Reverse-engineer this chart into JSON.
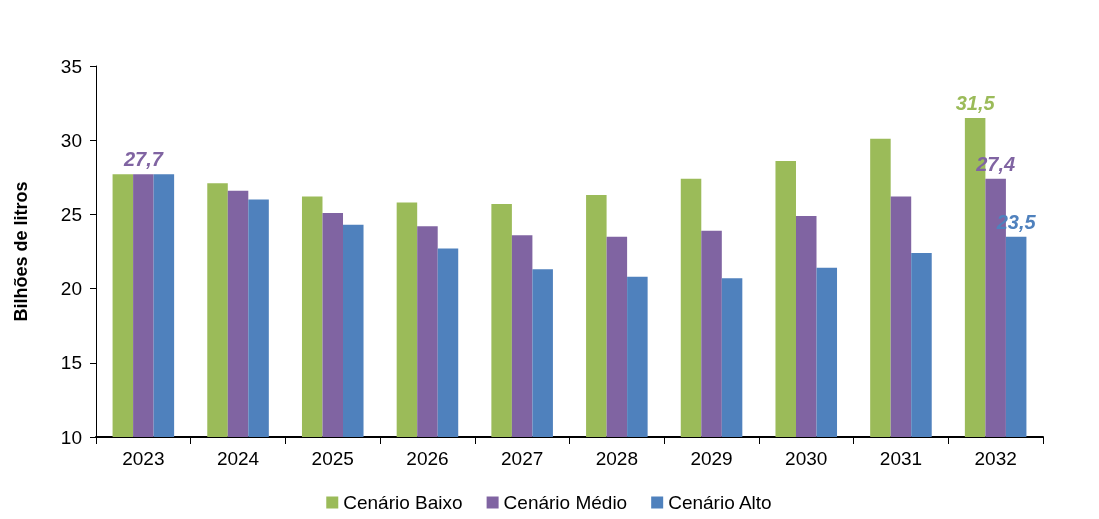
{
  "chart_data": {
    "type": "bar",
    "ylabel": "Bilhões de litros",
    "categories": [
      "2023",
      "2024",
      "2025",
      "2026",
      "2027",
      "2028",
      "2029",
      "2030",
      "2031",
      "2032"
    ],
    "series": [
      {
        "name": "Cenário Baixo",
        "color": "#9bbb59",
        "values": [
          27.7,
          27.1,
          26.2,
          25.8,
          25.7,
          26.3,
          27.4,
          28.6,
          30.1,
          31.5
        ],
        "value_labels": [
          null,
          null,
          null,
          null,
          null,
          null,
          null,
          null,
          null,
          "31,5"
        ]
      },
      {
        "name": "Cenário Médio",
        "color": "#8064a2",
        "values": [
          27.7,
          26.6,
          25.1,
          24.2,
          23.6,
          23.5,
          23.9,
          24.9,
          26.2,
          27.4
        ],
        "value_labels": [
          "27,7",
          null,
          null,
          null,
          null,
          null,
          null,
          null,
          null,
          "27,4"
        ]
      },
      {
        "name": "Cenário Alto",
        "color": "#4f81bd",
        "values": [
          27.7,
          26.0,
          24.3,
          22.7,
          21.3,
          20.8,
          20.7,
          21.4,
          22.4,
          23.5
        ],
        "value_labels": [
          null,
          null,
          null,
          null,
          null,
          null,
          null,
          null,
          null,
          "23,5"
        ]
      }
    ],
    "ylim": [
      10,
      35
    ],
    "yticks": [
      10,
      15,
      20,
      25,
      30,
      35
    ],
    "grid": false,
    "legend": "bottom"
  }
}
